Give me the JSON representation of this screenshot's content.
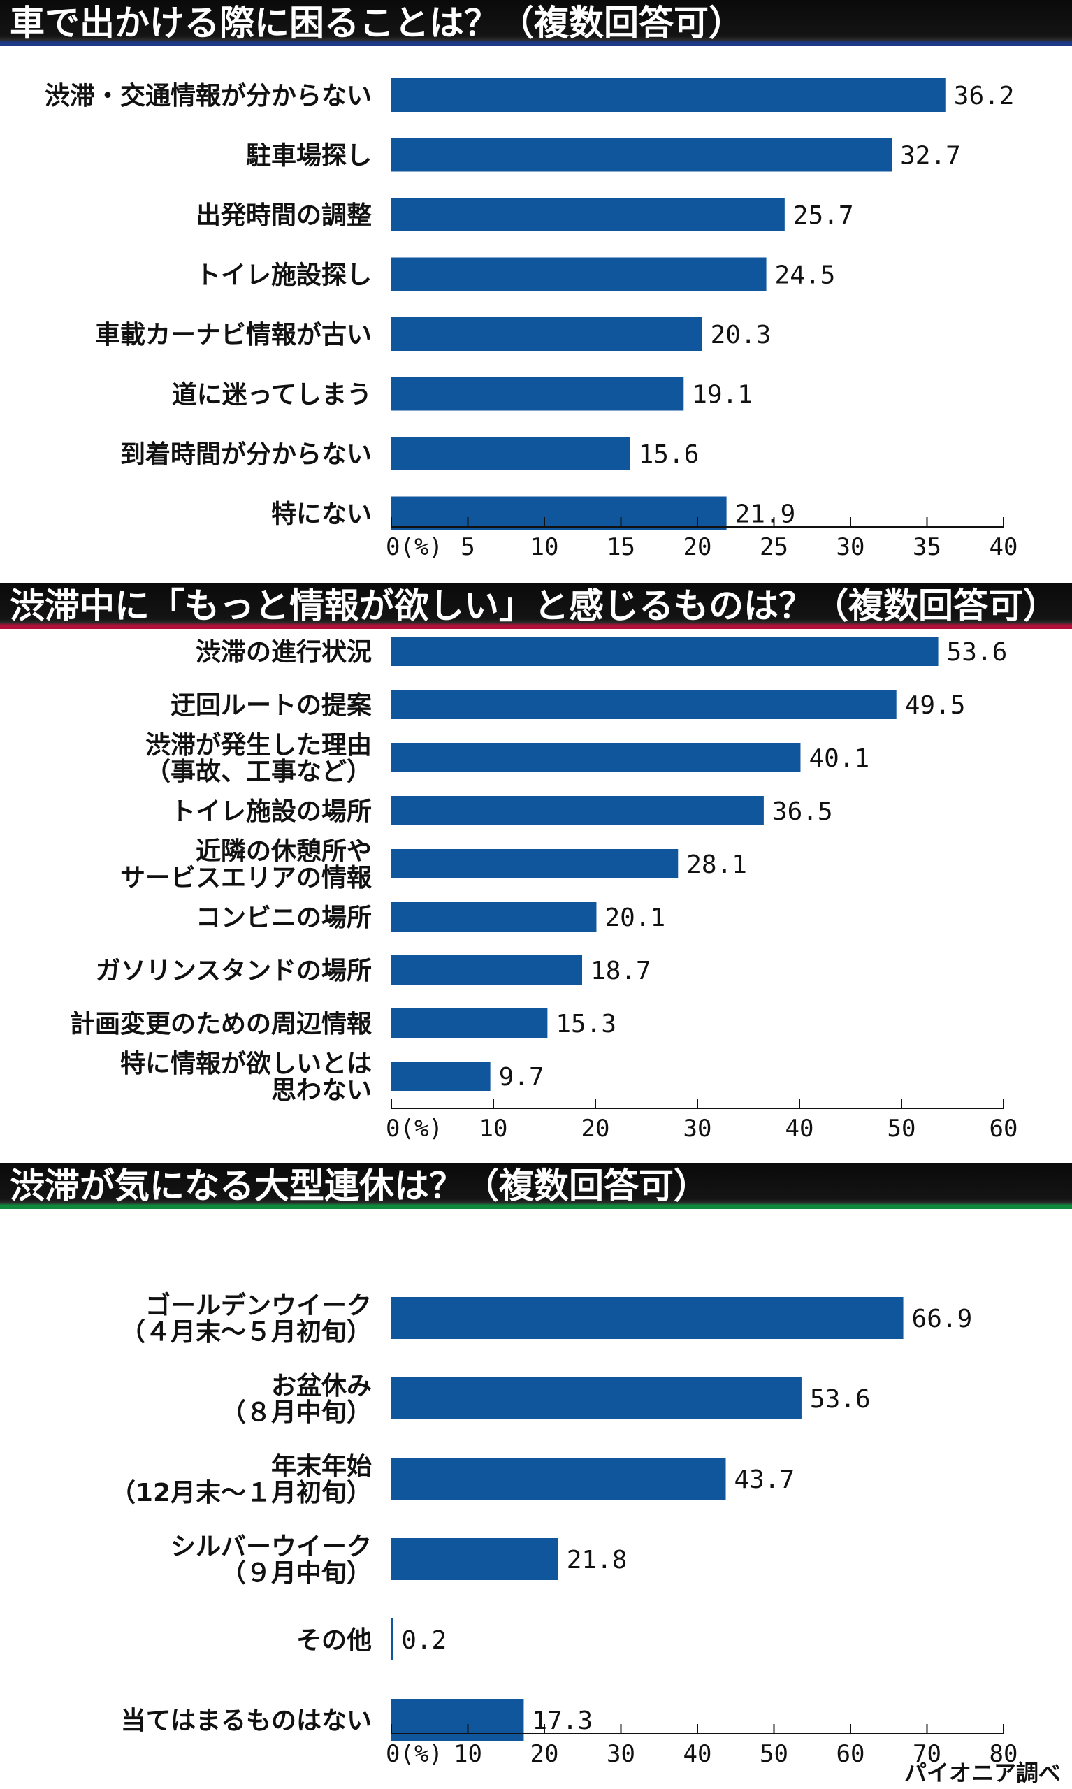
{
  "source": "パイオニア調べ",
  "colors": {
    "bar": "#0f569c",
    "accent1": "#1d3a8a",
    "accent2": "#b0103a",
    "accent3": "#0f8a3c"
  },
  "chart_data": [
    {
      "type": "bar",
      "orientation": "horizontal",
      "title": "車で出かける際に困ることは？（複数回答可）",
      "categories": [
        [
          "渋滞・交通情報が分からない"
        ],
        [
          "駐車場探し"
        ],
        [
          "出発時間の調整"
        ],
        [
          "トイレ施設探し"
        ],
        [
          "車載カーナビ情報が古い"
        ],
        [
          "道に迷ってしまう"
        ],
        [
          "到着時間が分からない"
        ],
        [
          "特にない"
        ]
      ],
      "values": [
        36.2,
        32.7,
        25.7,
        24.5,
        20.3,
        19.1,
        15.6,
        21.9
      ],
      "value_labels": [
        "36.2",
        "32.7",
        "25.7",
        "24.5",
        "20.3",
        "19.1",
        "15.6",
        "21.9"
      ],
      "xlim": [
        0,
        40
      ],
      "ticks": [
        0,
        5,
        10,
        15,
        20,
        25,
        30,
        35,
        40
      ],
      "tick_labels": [
        "0(%)",
        "5",
        "10",
        "15",
        "20",
        "25",
        "30",
        "35",
        "40"
      ],
      "xlabel": "(%)"
    },
    {
      "type": "bar",
      "orientation": "horizontal",
      "title": "渋滞中に「もっと情報が欲しい」と感じるものは？（複数回答可）",
      "categories": [
        [
          "渋滞の進行状況"
        ],
        [
          "迂回ルートの提案"
        ],
        [
          "渋滞が発生した理由",
          "（事故、工事など）"
        ],
        [
          "トイレ施設の場所"
        ],
        [
          "近隣の休憩所や",
          "サービスエリアの情報"
        ],
        [
          "コンビニの場所"
        ],
        [
          "ガソリンスタンドの場所"
        ],
        [
          "計画変更のための周辺情報"
        ],
        [
          "特に情報が欲しいとは",
          "思わない"
        ]
      ],
      "values": [
        53.6,
        49.5,
        40.1,
        36.5,
        28.1,
        20.1,
        18.7,
        15.3,
        9.7
      ],
      "value_labels": [
        "53.6",
        "49.5",
        "40.1",
        "36.5",
        "28.1",
        "20.1",
        "18.7",
        "15.3",
        "9.7"
      ],
      "xlim": [
        0,
        60
      ],
      "ticks": [
        0,
        10,
        20,
        30,
        40,
        50,
        60
      ],
      "tick_labels": [
        "0(%)",
        "10",
        "20",
        "30",
        "40",
        "50",
        "60"
      ],
      "xlabel": "(%)"
    },
    {
      "type": "bar",
      "orientation": "horizontal",
      "title": "渋滞が気になる大型連休は？（複数回答可）",
      "categories": [
        [
          "ゴールデンウイーク",
          "（４月末～５月初旬）"
        ],
        [
          "お盆休み",
          "（８月中旬）"
        ],
        [
          "年末年始",
          "（12月末～１月初旬）"
        ],
        [
          "シルバーウイーク",
          "（９月中旬）"
        ],
        [
          "その他"
        ],
        [
          "当てはまるものはない"
        ]
      ],
      "values": [
        66.9,
        53.6,
        43.7,
        21.8,
        0.2,
        17.3
      ],
      "value_labels": [
        "66.9",
        "53.6",
        "43.7",
        "21.8",
        "0.2",
        "17.3"
      ],
      "xlim": [
        0,
        80
      ],
      "ticks": [
        0,
        10,
        20,
        30,
        40,
        50,
        60,
        70,
        80
      ],
      "tick_labels": [
        "0(%)",
        "10",
        "20",
        "30",
        "40",
        "50",
        "60",
        "70",
        "80"
      ],
      "xlabel": "(%)"
    }
  ]
}
